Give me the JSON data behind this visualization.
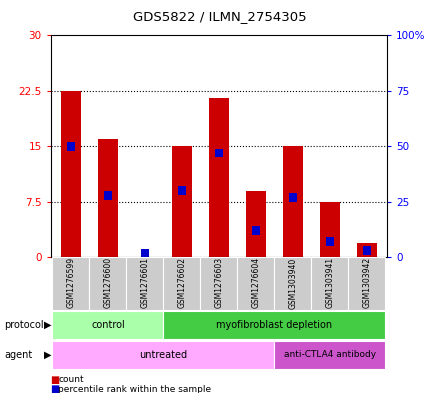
{
  "title": "GDS5822 / ILMN_2754305",
  "samples": [
    "GSM1276599",
    "GSM1276600",
    "GSM1276601",
    "GSM1276602",
    "GSM1276603",
    "GSM1276604",
    "GSM1303940",
    "GSM1303941",
    "GSM1303942"
  ],
  "counts": [
    22.5,
    16.0,
    0.1,
    15.0,
    21.5,
    9.0,
    15.0,
    7.5,
    2.0
  ],
  "percentile_ranks": [
    50,
    28,
    0.5,
    30,
    47,
    12,
    27,
    7,
    3
  ],
  "left_ylim": [
    0,
    30
  ],
  "right_ylim": [
    0,
    100
  ],
  "left_yticks": [
    0,
    7.5,
    15,
    22.5,
    30
  ],
  "right_yticks": [
    0,
    25,
    50,
    75,
    100
  ],
  "left_yticklabels": [
    "0",
    "7.5",
    "15",
    "22.5",
    "30"
  ],
  "right_yticklabels": [
    "0",
    "25",
    "50",
    "75",
    "100%"
  ],
  "bar_color": "#cc0000",
  "percentile_color": "#0000cc",
  "bar_width": 0.55,
  "protocol_control_samples": [
    0,
    1,
    2
  ],
  "protocol_myo_samples": [
    3,
    4,
    5,
    6,
    7,
    8
  ],
  "agent_untreated_samples": [
    0,
    1,
    2,
    3,
    4,
    5
  ],
  "agent_anti_samples": [
    6,
    7,
    8
  ],
  "protocol_control_color": "#aaffaa",
  "protocol_myo_color": "#44cc44",
  "agent_untreated_color": "#ffaaff",
  "agent_anti_color": "#cc55cc",
  "grid_color": "black",
  "bg_color": "white"
}
